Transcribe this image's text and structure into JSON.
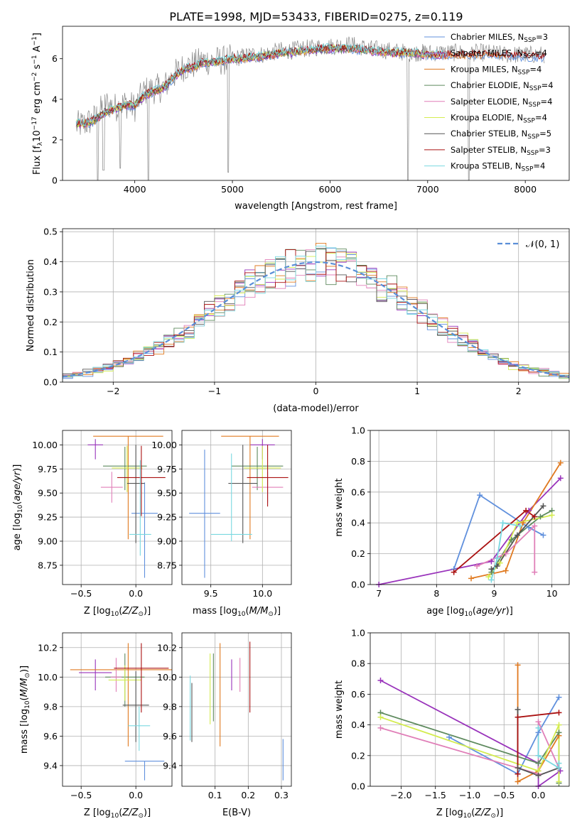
{
  "title": "PLATE=1998, MJD=53433, FIBERID=0275, z=0.119",
  "models": [
    {
      "name": "Chabrier MILES",
      "nssp": "3",
      "color": "#6090dd"
    },
    {
      "name": "Salpeter MILES",
      "nssp": "4",
      "color": "#9933bb"
    },
    {
      "name": "Kroupa MILES",
      "nssp": "4",
      "color": "#e07a20"
    },
    {
      "name": "Chabrier ELODIE",
      "nssp": "4",
      "color": "#5e8a5e"
    },
    {
      "name": "Salpeter ELODIE",
      "nssp": "4",
      "color": "#e07fb8"
    },
    {
      "name": "Kroupa ELODIE",
      "nssp": "4",
      "color": "#d4ec50"
    },
    {
      "name": "Chabrier STELIB",
      "nssp": "5",
      "color": "#555555"
    },
    {
      "name": "Salpeter STELIB",
      "nssp": "3",
      "color": "#aa1111"
    },
    {
      "name": "Kroupa STELIB",
      "nssp": "4",
      "color": "#7ad8e0"
    }
  ],
  "chart_data": [
    {
      "id": "spectrum",
      "type": "line",
      "xlabel": "wavelength [Angstrom, rest frame]",
      "ylabel": "Flux [f_λ 10^-17 erg cm^-2 s^-1 A^-1]",
      "xlim": [
        3260,
        8450
      ],
      "ylim": [
        0,
        7.6
      ],
      "xticks": [
        4000,
        5000,
        6000,
        7000,
        8000
      ],
      "yticks": [
        0,
        2,
        4,
        6
      ],
      "data_color": "#888888",
      "grid": false,
      "legend_position": "top-right",
      "data_anchors": [
        [
          3400,
          2.7
        ],
        [
          3500,
          2.8
        ],
        [
          3600,
          3.1
        ],
        [
          3700,
          3.8
        ],
        [
          3800,
          3.6
        ],
        [
          3900,
          3.8
        ],
        [
          4000,
          3.6
        ],
        [
          4100,
          4.4
        ],
        [
          4200,
          4.5
        ],
        [
          4300,
          4.6
        ],
        [
          4400,
          5.2
        ],
        [
          4500,
          5.6
        ],
        [
          4600,
          5.7
        ],
        [
          4700,
          5.9
        ],
        [
          4800,
          5.9
        ],
        [
          4900,
          5.9
        ],
        [
          5000,
          6.0
        ],
        [
          5100,
          6.1
        ],
        [
          5200,
          6.2
        ],
        [
          5300,
          6.2
        ],
        [
          5400,
          6.3
        ],
        [
          5500,
          6.4
        ],
        [
          5600,
          6.4
        ],
        [
          5700,
          6.5
        ],
        [
          5800,
          6.5
        ],
        [
          5900,
          6.6
        ],
        [
          6000,
          6.6
        ],
        [
          6200,
          6.7
        ],
        [
          6400,
          6.5
        ],
        [
          6600,
          6.4
        ],
        [
          6800,
          6.3
        ],
        [
          7000,
          6.3
        ],
        [
          7200,
          6.3
        ],
        [
          7400,
          6.3
        ],
        [
          7600,
          6.3
        ],
        [
          7800,
          6.2
        ],
        [
          8000,
          6.2
        ],
        [
          8200,
          6.2
        ]
      ],
      "model_anchors": [
        [
          3400,
          2.8
        ],
        [
          3500,
          2.8
        ],
        [
          3600,
          3.0
        ],
        [
          3700,
          3.4
        ],
        [
          3800,
          3.5
        ],
        [
          3900,
          3.7
        ],
        [
          4000,
          3.7
        ],
        [
          4100,
          4.2
        ],
        [
          4200,
          4.4
        ],
        [
          4300,
          4.6
        ],
        [
          4400,
          5.1
        ],
        [
          4500,
          5.5
        ],
        [
          4600,
          5.6
        ],
        [
          4700,
          5.8
        ],
        [
          4800,
          5.8
        ],
        [
          4900,
          5.9
        ],
        [
          5000,
          6.0
        ],
        [
          5100,
          6.0
        ],
        [
          5200,
          6.1
        ],
        [
          5300,
          6.1
        ],
        [
          5400,
          6.2
        ],
        [
          5500,
          6.3
        ],
        [
          5600,
          6.3
        ],
        [
          5700,
          6.4
        ],
        [
          5800,
          6.4
        ],
        [
          5900,
          6.5
        ],
        [
          6000,
          6.5
        ],
        [
          6200,
          6.5
        ],
        [
          6400,
          6.4
        ],
        [
          6600,
          6.3
        ],
        [
          6800,
          6.3
        ],
        [
          7000,
          6.2
        ],
        [
          7200,
          6.2
        ],
        [
          7400,
          6.2
        ],
        [
          7600,
          6.2
        ],
        [
          7800,
          6.2
        ],
        [
          8000,
          6.1
        ],
        [
          8200,
          6.1
        ]
      ],
      "model_ranges": [
        [
          3400,
          8200
        ],
        [
          3400,
          7200
        ],
        [
          3400,
          7800
        ],
        [
          3400,
          6900
        ],
        [
          3400,
          7000
        ],
        [
          3400,
          7100
        ],
        [
          3400,
          7050
        ],
        [
          3400,
          8200
        ],
        [
          3400,
          7200
        ]
      ],
      "dropouts": [
        [
          3620,
          0
        ],
        [
          3680,
          0.5
        ],
        [
          3850,
          0.6
        ],
        [
          4140,
          0
        ],
        [
          4960,
          0.4
        ],
        [
          6800,
          0
        ],
        [
          7420,
          0
        ]
      ]
    },
    {
      "id": "residual-histogram",
      "type": "bar",
      "xlabel": "(data-model)/error",
      "ylabel": "Normed distribution",
      "xlim": [
        -2.5,
        2.5
      ],
      "ylim": [
        0,
        0.51
      ],
      "xticks": [
        -2,
        -1,
        0,
        1,
        2
      ],
      "yticks": [
        0,
        0.1,
        0.2,
        0.3,
        0.4,
        0.5
      ],
      "grid": true,
      "legend_position": "top-right",
      "legend_label": "𝒩(0, 1)",
      "gaussian_color": "#5a8fd8",
      "bins": [
        -2.5,
        -2.4,
        -2.3,
        -2.2,
        -2.1,
        -2.0,
        -1.9,
        -1.8,
        -1.7,
        -1.6,
        -1.5,
        -1.4,
        -1.3,
        -1.2,
        -1.1,
        -1.0,
        -0.9,
        -0.8,
        -0.7,
        -0.6,
        -0.5,
        -0.4,
        -0.3,
        -0.2,
        -0.1,
        0.0,
        0.1,
        0.2,
        0.3,
        0.4,
        0.5,
        0.6,
        0.7,
        0.8,
        0.9,
        1.0,
        1.1,
        1.2,
        1.3,
        1.4,
        1.5,
        1.6,
        1.7,
        1.8,
        1.9,
        2.0,
        2.1,
        2.2,
        2.3,
        2.4,
        2.5
      ]
    },
    {
      "id": "age-vs-metallicity",
      "type": "scatter",
      "xlabel": "Z [log10(Z/Z⊙)]",
      "ylabel": "age [log10(age/yr)]",
      "xlim": [
        -0.67,
        0.33
      ],
      "ylim": [
        8.55,
        10.15
      ],
      "xticks": [
        -0.5,
        0.0
      ],
      "yticks": [
        8.75,
        9.0,
        9.25,
        9.5,
        9.75,
        10.0
      ],
      "grid": true,
      "points": [
        {
          "x": 0.08,
          "y": 9.29,
          "xerr": 0.12,
          "yerr": [
            0.67,
            0.32
          ]
        },
        {
          "x": -0.37,
          "y": 10.0,
          "xerr": 0.07,
          "yerr": [
            0.15,
            0.06
          ]
        },
        {
          "x": -0.07,
          "y": 10.09,
          "xerr": 0.32,
          "yerr": [
            1.07,
            0.0
          ]
        },
        {
          "x": -0.1,
          "y": 9.78,
          "xerr": 0.2,
          "yerr": [
            0.25,
            0.2
          ]
        },
        {
          "x": -0.22,
          "y": 9.56,
          "xerr": 0.1,
          "yerr": [
            0.16,
            0.16
          ]
        },
        {
          "x": -0.08,
          "y": 9.76,
          "xerr": 0.14,
          "yerr": [
            0.25,
            0.23
          ]
        },
        {
          "x": 0.0,
          "y": 9.6,
          "xerr": 0.08,
          "yerr": [
            0.62,
            0.4
          ]
        },
        {
          "x": 0.05,
          "y": 9.66,
          "xerr": 0.22,
          "yerr": [
            0.4,
            0.33
          ]
        },
        {
          "x": 0.04,
          "y": 9.07,
          "xerr": 0.1,
          "yerr": [
            0.22,
            0.77
          ]
        }
      ]
    },
    {
      "id": "age-vs-mass",
      "type": "scatter",
      "xlabel": "mass [log10(M/M⊙)]",
      "ylabel": "",
      "xlim": [
        9.22,
        10.28
      ],
      "ylim": [
        8.55,
        10.15
      ],
      "xticks": [
        9.5,
        10.0
      ],
      "yticks": [
        8.75,
        9.0,
        9.25,
        9.5,
        9.75,
        10.0
      ],
      "grid": true,
      "points": [
        {
          "x": 9.44,
          "y": 9.29,
          "xerr": 0.15,
          "yerr": [
            0.67,
            0.66
          ]
        },
        {
          "x": 10.0,
          "y": 10.0,
          "xerr": 0.12,
          "yerr": [
            0.15,
            0.06
          ]
        },
        {
          "x": 9.88,
          "y": 10.09,
          "xerr": 0.28,
          "yerr": [
            1.07,
            0.0
          ]
        },
        {
          "x": 9.95,
          "y": 9.78,
          "xerr": 0.25,
          "yerr": [
            0.25,
            0.2
          ]
        },
        {
          "x": 10.05,
          "y": 9.56,
          "xerr": 0.15,
          "yerr": [
            0.16,
            0.16
          ]
        },
        {
          "x": 10.0,
          "y": 9.76,
          "xerr": 0.18,
          "yerr": [
            0.25,
            0.23
          ]
        },
        {
          "x": 9.81,
          "y": 9.6,
          "xerr": 0.14,
          "yerr": [
            0.62,
            0.4
          ]
        },
        {
          "x": 10.05,
          "y": 9.66,
          "xerr": 0.2,
          "yerr": [
            0.3,
            0.34
          ]
        },
        {
          "x": 9.7,
          "y": 9.07,
          "xerr": 0.2,
          "yerr": [
            0.07,
            0.84
          ]
        }
      ]
    },
    {
      "id": "mass-weight-vs-age",
      "type": "line",
      "xlabel": "age [log10(age/yr)]",
      "ylabel": "mass weight",
      "xlim": [
        6.85,
        10.3
      ],
      "ylim": [
        0,
        1.0
      ],
      "xticks": [
        7,
        8,
        9,
        10
      ],
      "yticks": [
        0.0,
        0.2,
        0.4,
        0.6,
        0.8,
        1.0
      ],
      "grid": true,
      "series": [
        {
          "x": [
            8.3,
            8.75,
            9.6,
            9.85
          ],
          "y": [
            0.1,
            0.58,
            0.37,
            0.32
          ]
        },
        {
          "x": [
            7.0,
            8.95,
            9.6,
            10.15
          ],
          "y": [
            0.0,
            0.15,
            0.48,
            0.69
          ]
        },
        {
          "x": [
            8.6,
            9.2,
            9.5,
            10.15
          ],
          "y": [
            0.04,
            0.09,
            0.4,
            0.79
          ]
        },
        {
          "x": [
            8.95,
            9.3,
            9.8,
            10.0
          ],
          "y": [
            0.08,
            0.29,
            0.44,
            0.48
          ]
        },
        {
          "x": [
            8.7,
            9.2,
            9.7,
            9.7
          ],
          "y": [
            0.12,
            0.2,
            0.38,
            0.08
          ]
        },
        {
          "x": [
            8.9,
            9.1,
            9.4,
            10.0
          ],
          "y": [
            0.05,
            0.14,
            0.4,
            0.45
          ]
        },
        {
          "x": [
            8.95,
            9.05,
            9.4,
            9.85
          ],
          "y": [
            0.1,
            0.12,
            0.32,
            0.51
          ]
        },
        {
          "x": [
            8.3,
            9.55,
            9.7
          ],
          "y": [
            0.08,
            0.48,
            0.44
          ]
        },
        {
          "x": [
            8.95,
            9.05,
            9.15,
            9.45
          ],
          "y": [
            0.03,
            0.17,
            0.4,
            0.38
          ]
        }
      ]
    },
    {
      "id": "mass-vs-metallicity",
      "type": "scatter",
      "xlabel": "Z [log10(Z/Z⊙)]",
      "ylabel": "mass [log10(M/M⊙)]",
      "xlim": [
        -0.67,
        0.33
      ],
      "ylim": [
        9.26,
        10.3
      ],
      "xticks": [
        -0.5,
        0.0
      ],
      "yticks": [
        9.4,
        9.6,
        9.8,
        10.0,
        10.2
      ],
      "grid": true,
      "points": [
        {
          "x": 0.08,
          "y": 9.43,
          "xerr": 0.18,
          "yerr": [
            0.13,
            0.0
          ]
        },
        {
          "x": -0.37,
          "y": 10.03,
          "xerr": 0.15,
          "yerr": [
            0.12,
            0.09
          ]
        },
        {
          "x": -0.07,
          "y": 10.05,
          "xerr": 0.53,
          "yerr": [
            0.52,
            0.18
          ]
        },
        {
          "x": -0.1,
          "y": 10.0,
          "xerr": 0.18,
          "yerr": [
            0.2,
            0.16
          ]
        },
        {
          "x": -0.18,
          "y": 10.0,
          "xerr": 0.05,
          "yerr": [
            0.1,
            0.13
          ]
        },
        {
          "x": -0.1,
          "y": 9.98,
          "xerr": 0.15,
          "yerr": [
            0.14,
            0.1
          ]
        },
        {
          "x": 0.0,
          "y": 9.81,
          "xerr": 0.12,
          "yerr": [
            0.25,
            0.23
          ]
        },
        {
          "x": 0.05,
          "y": 10.06,
          "xerr": 0.25,
          "yerr": [
            0.3,
            0.17
          ]
        },
        {
          "x": 0.03,
          "y": 9.67,
          "xerr": 0.1,
          "yerr": [
            0.17,
            0.13
          ]
        }
      ]
    },
    {
      "id": "ebv-vs-mass",
      "type": "scatter",
      "xlabel": "E(B-V)",
      "ylabel": "",
      "xlim": [
        0.0,
        0.33
      ],
      "ylim": [
        9.26,
        10.3
      ],
      "xticks": [
        0.1,
        0.2,
        0.3
      ],
      "yticks": [
        9.4,
        9.6,
        9.8,
        10.0,
        10.2
      ],
      "grid": true,
      "points": [
        {
          "x": 0.305,
          "y": 9.43,
          "xerr": 0,
          "yerr": [
            0.13,
            0.15
          ]
        },
        {
          "x": 0.15,
          "y": 10.03,
          "xerr": 0,
          "yerr": [
            0.12,
            0.09
          ]
        },
        {
          "x": 0.115,
          "y": 10.05,
          "xerr": 0,
          "yerr": [
            0.52,
            0.18
          ]
        },
        {
          "x": 0.095,
          "y": 10.0,
          "xerr": 0,
          "yerr": [
            0.3,
            0.16
          ]
        },
        {
          "x": 0.175,
          "y": 10.0,
          "xerr": 0,
          "yerr": [
            0.1,
            0.13
          ]
        },
        {
          "x": 0.085,
          "y": 9.98,
          "xerr": 0,
          "yerr": [
            0.3,
            0.18
          ]
        },
        {
          "x": 0.03,
          "y": 9.81,
          "xerr": 0,
          "yerr": [
            0.25,
            0.15
          ]
        },
        {
          "x": 0.205,
          "y": 10.06,
          "xerr": 0,
          "yerr": [
            0.3,
            0.18
          ]
        },
        {
          "x": 0.025,
          "y": 9.67,
          "xerr": 0,
          "yerr": [
            0.1,
            0.34
          ]
        }
      ]
    },
    {
      "id": "mass-weight-vs-metallicity",
      "type": "line",
      "xlabel": "Z [log10(Z/Z⊙)]",
      "ylabel": "mass weight",
      "xlim": [
        -2.45,
        0.45
      ],
      "ylim": [
        0,
        1.0
      ],
      "xticks": [
        -2.0,
        -1.5,
        -1.0,
        -0.5,
        0.0
      ],
      "yticks": [
        0.0,
        0.2,
        0.4,
        0.6,
        0.8,
        1.0
      ],
      "grid": true,
      "series": [
        {
          "x": [
            -1.3,
            -0.3,
            0.0,
            0.3
          ],
          "y": [
            0.32,
            0.08,
            0.35,
            0.58
          ]
        },
        {
          "x": [
            -2.3,
            0.0,
            0.0,
            0.32
          ],
          "y": [
            0.69,
            0.15,
            0.0,
            0.1
          ]
        },
        {
          "x": [
            -0.3,
            -0.3,
            0.0,
            0.3
          ],
          "y": [
            0.79,
            0.03,
            0.1,
            0.33
          ]
        },
        {
          "x": [
            -2.3,
            0.0,
            0.3,
            0.3
          ],
          "y": [
            0.48,
            0.15,
            0.35,
            0.02
          ]
        },
        {
          "x": [
            -2.3,
            0.0,
            0.0,
            0.3
          ],
          "y": [
            0.38,
            0.08,
            0.42,
            0.12
          ]
        },
        {
          "x": [
            -2.3,
            0.0,
            0.3,
            0.3
          ],
          "y": [
            0.45,
            0.1,
            0.4,
            0.03
          ]
        },
        {
          "x": [
            -0.3,
            -0.3,
            0.0,
            0.3
          ],
          "y": [
            0.5,
            0.12,
            0.07,
            0.12
          ]
        },
        {
          "x": [
            -0.3,
            -0.3,
            0.3
          ],
          "y": [
            0.08,
            0.45,
            0.48
          ]
        },
        {
          "x": [
            0.0,
            0.0,
            0.3,
            0.3
          ],
          "y": [
            0.38,
            0.2,
            0.12,
            0.15
          ]
        }
      ]
    }
  ]
}
